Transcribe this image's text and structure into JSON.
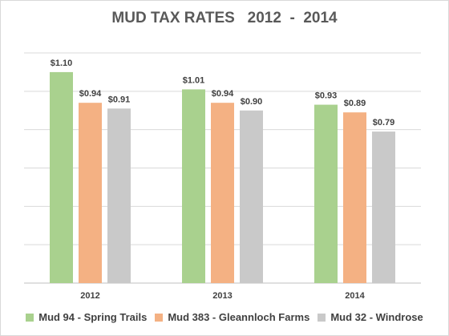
{
  "chart_data": {
    "type": "bar",
    "title": "MUD TAX RATES   2012  -  2014",
    "categories": [
      "2012",
      "2013",
      "2014"
    ],
    "series": [
      {
        "name": "Mud 94 - Spring Trails",
        "color": "#a9d18e",
        "values": [
          1.1,
          1.01,
          0.93
        ],
        "labels": [
          "$1.10",
          "$1.01",
          "$0.93"
        ]
      },
      {
        "name": "Mud 383 - Gleannloch Farms",
        "color": "#f4b183",
        "values": [
          0.94,
          0.94,
          0.89
        ],
        "labels": [
          "$0.94",
          "$0.94",
          "$0.89"
        ]
      },
      {
        "name": "Mud 32 - Windrose",
        "color": "#c9c9c9",
        "values": [
          0.91,
          0.9,
          0.79
        ],
        "labels": [
          "$0.91",
          "$0.90",
          "$0.79"
        ]
      }
    ],
    "ylim": [
      0,
      1.2
    ],
    "gridlines": true,
    "legend": "bottom"
  }
}
